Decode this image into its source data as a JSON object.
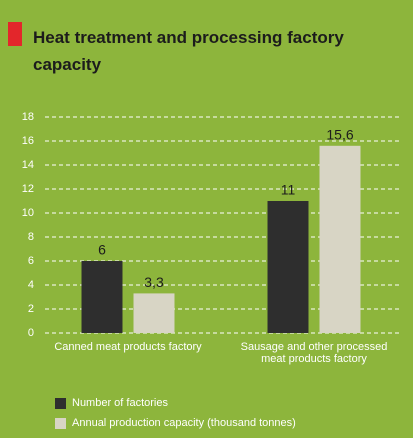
{
  "chart_data": {
    "type": "bar",
    "title": "Heat treatment and processing factory capacity",
    "categories": [
      "Canned meat products factory",
      "Sausage and other processed meat products factory"
    ],
    "series": [
      {
        "name": "Number of factories",
        "color": "#2e2e2e",
        "values": [
          6,
          11
        ]
      },
      {
        "name": "Annual production capacity (thousand tonnes)",
        "color": "#d8d5c5",
        "values": [
          3.3,
          15.6
        ],
        "value_labels": [
          "3,3",
          "15,6"
        ]
      }
    ],
    "ylim": [
      0,
      18
    ],
    "yticks": [
      0,
      2,
      4,
      6,
      8,
      10,
      12,
      14,
      16,
      18
    ],
    "grid": true,
    "legend": "bottom-left"
  }
}
